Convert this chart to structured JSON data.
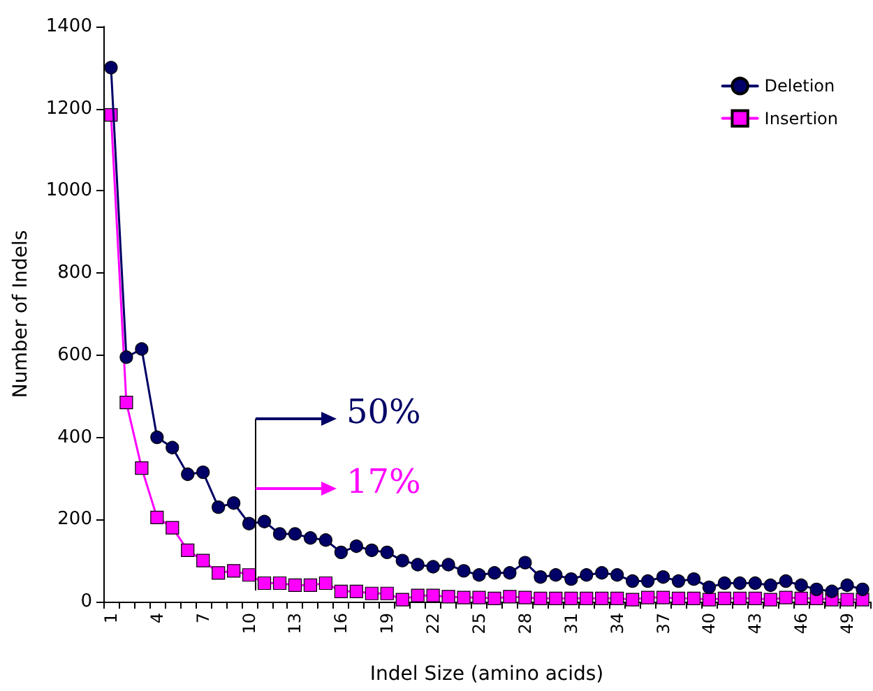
{
  "chart_data": {
    "type": "line",
    "xlabel": "Indel Size (amino acids)",
    "ylabel": "Number of Indels",
    "categories": [
      "1",
      null,
      null,
      "4",
      null,
      null,
      "7",
      null,
      null,
      "10",
      null,
      null,
      "13",
      null,
      null,
      "16",
      null,
      null,
      "19",
      null,
      null,
      "22",
      null,
      null,
      "25",
      null,
      null,
      "28",
      null,
      null,
      "31",
      null,
      null,
      "34",
      null,
      null,
      "37",
      null,
      null,
      "40",
      null,
      null,
      "43",
      null,
      null,
      "46",
      null,
      null,
      "49",
      null
    ],
    "series": [
      {
        "name": "Deletion",
        "color": "#000066",
        "marker": "circle",
        "values": [
          1300,
          595,
          615,
          400,
          375,
          310,
          315,
          230,
          240,
          190,
          195,
          165,
          165,
          155,
          150,
          120,
          135,
          125,
          120,
          100,
          90,
          85,
          90,
          75,
          65,
          70,
          70,
          95,
          60,
          65,
          55,
          65,
          70,
          65,
          50,
          50,
          60,
          50,
          55,
          35,
          45,
          45,
          45,
          40,
          50,
          40,
          30,
          25,
          40,
          30
        ]
      },
      {
        "name": "Insertion",
        "color": "#ff00ff",
        "marker": "square",
        "values": [
          1185,
          485,
          325,
          205,
          180,
          125,
          100,
          70,
          75,
          65,
          45,
          45,
          40,
          40,
          45,
          25,
          25,
          20,
          20,
          5,
          15,
          15,
          12,
          10,
          10,
          8,
          12,
          10,
          8,
          8,
          8,
          8,
          8,
          8,
          5,
          10,
          10,
          8,
          8,
          5,
          8,
          8,
          8,
          5,
          10,
          8,
          8,
          5,
          5,
          5
        ]
      }
    ],
    "annotations": [
      "50%",
      "17%"
    ],
    "ylim": [
      0,
      1400
    ],
    "yticks": [
      0,
      200,
      400,
      600,
      800,
      {
        "value": 1000,
        "label": "1000"
      },
      {
        "value": 1200,
        "label": "1200"
      },
      {
        "value": 1400,
        "label": "1400"
      }
    ],
    "grid": false,
    "legend": "top right",
    "line_style": "solid"
  }
}
